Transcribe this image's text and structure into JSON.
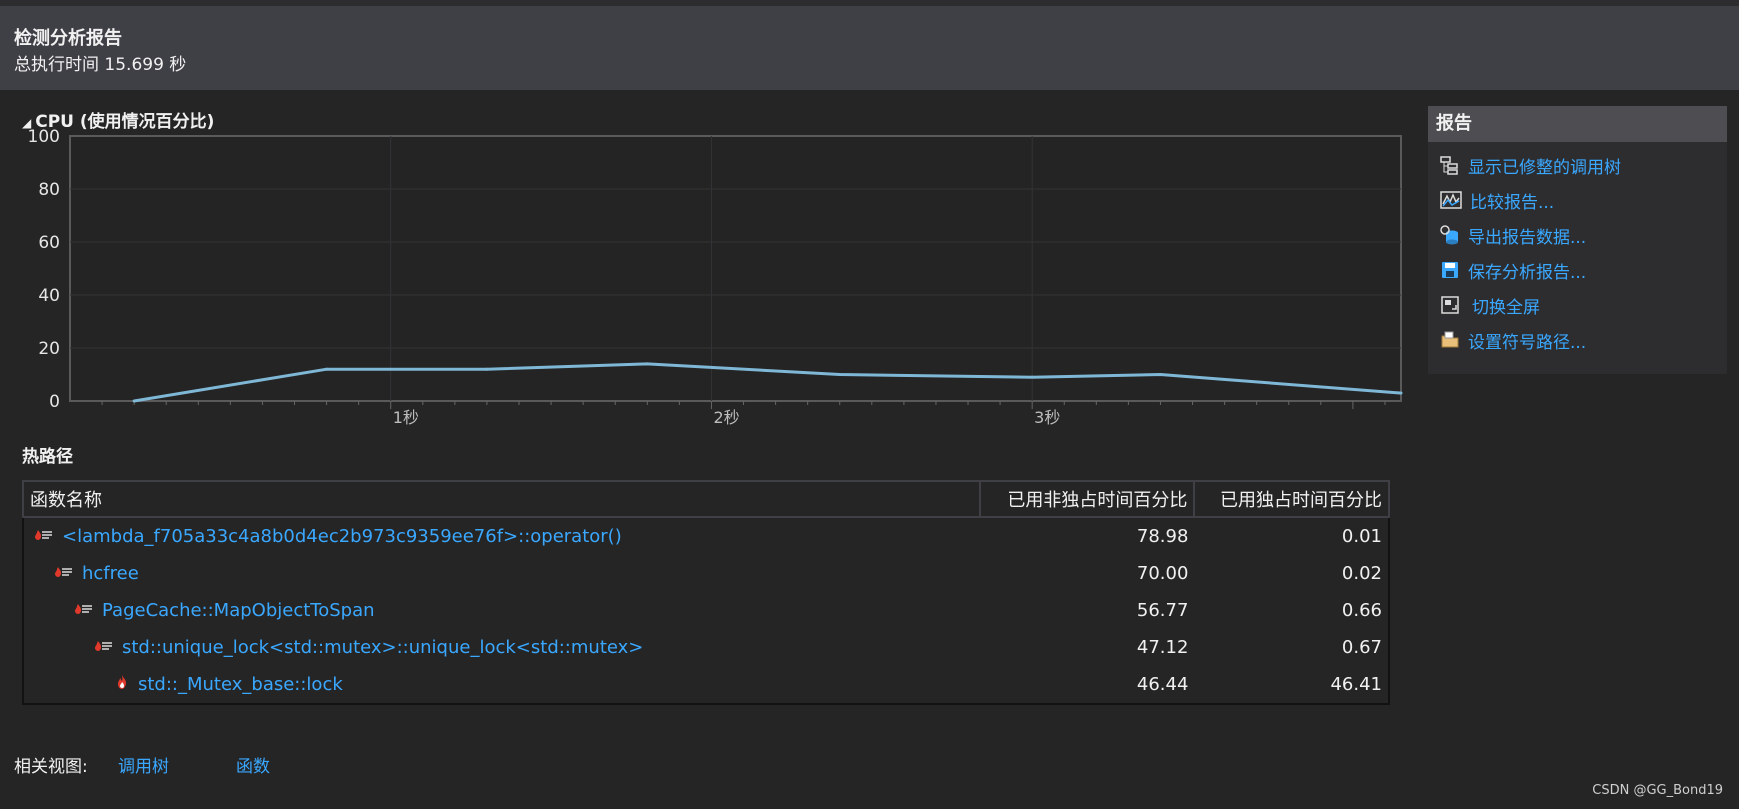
{
  "header": {
    "title": "检测分析报告",
    "subtitle": "总执行时间 15.699 秒"
  },
  "cpu_section": {
    "title": "CPU (使用情况百分比)"
  },
  "chart_data": {
    "type": "line",
    "title": "CPU (使用情况百分比)",
    "xlabel": "",
    "ylabel": "",
    "ylim": [
      0,
      100
    ],
    "xlim": [
      0,
      4.15
    ],
    "yticks": [
      "100",
      "80",
      "60",
      "40",
      "20",
      "0"
    ],
    "xticks": [
      {
        "value": 1,
        "label": "1秒"
      },
      {
        "value": 2,
        "label": "2秒"
      },
      {
        "value": 3,
        "label": "3秒"
      }
    ],
    "grid": true,
    "series": [
      {
        "color": "#7fb8d6",
        "x": [
          0.2,
          0.8,
          1.3,
          1.8,
          2.4,
          3.0,
          3.4,
          4.15
        ],
        "y": [
          0,
          12,
          12,
          14,
          10,
          9,
          10,
          3
        ]
      }
    ]
  },
  "hot_path": {
    "title": "热路径",
    "columns": [
      "函数名称",
      "已用非独占时间百分比",
      "已用独占时间百分比"
    ],
    "rows": [
      {
        "name": "<lambda_f705a33c4a8b0d4ec2b973c9359ee76f>::operator()",
        "inclusive": "78.98",
        "exclusive": "0.01",
        "indent": 0,
        "icon": "hot-path-icon"
      },
      {
        "name": "hcfree",
        "inclusive": "70.00",
        "exclusive": "0.02",
        "indent": 1,
        "icon": "hot-path-icon"
      },
      {
        "name": "PageCache::MapObjectToSpan",
        "inclusive": "56.77",
        "exclusive": "0.66",
        "indent": 2,
        "icon": "hot-path-icon"
      },
      {
        "name": "std::unique_lock<std::mutex>::unique_lock<std::mutex>",
        "inclusive": "47.12",
        "exclusive": "0.67",
        "indent": 3,
        "icon": "hot-path-icon"
      },
      {
        "name": "std::_Mutex_base::lock",
        "inclusive": "46.44",
        "exclusive": "46.41",
        "indent": 4,
        "icon": "flame-icon"
      }
    ]
  },
  "sidebar": {
    "title": "报告",
    "items": [
      {
        "label": "显示已修整的调用树",
        "icon": "call-tree-icon"
      },
      {
        "label": "比较报告...",
        "icon": "compare-report-icon"
      },
      {
        "label": "导出报告数据...",
        "icon": "export-data-icon"
      },
      {
        "label": "保存分析报告...",
        "icon": "save-icon"
      },
      {
        "label": "切换全屏",
        "icon": "fullscreen-icon"
      },
      {
        "label": "设置符号路径...",
        "icon": "folder-icon"
      }
    ]
  },
  "related_views": {
    "label": "相关视图:",
    "links": [
      "调用树",
      "函数"
    ]
  },
  "watermark": "CSDN @GG_Bond19",
  "colors": {
    "background": "#252526",
    "header": "#3f3f46",
    "link": "#3aa8ff",
    "line": "#7fb8d6"
  }
}
